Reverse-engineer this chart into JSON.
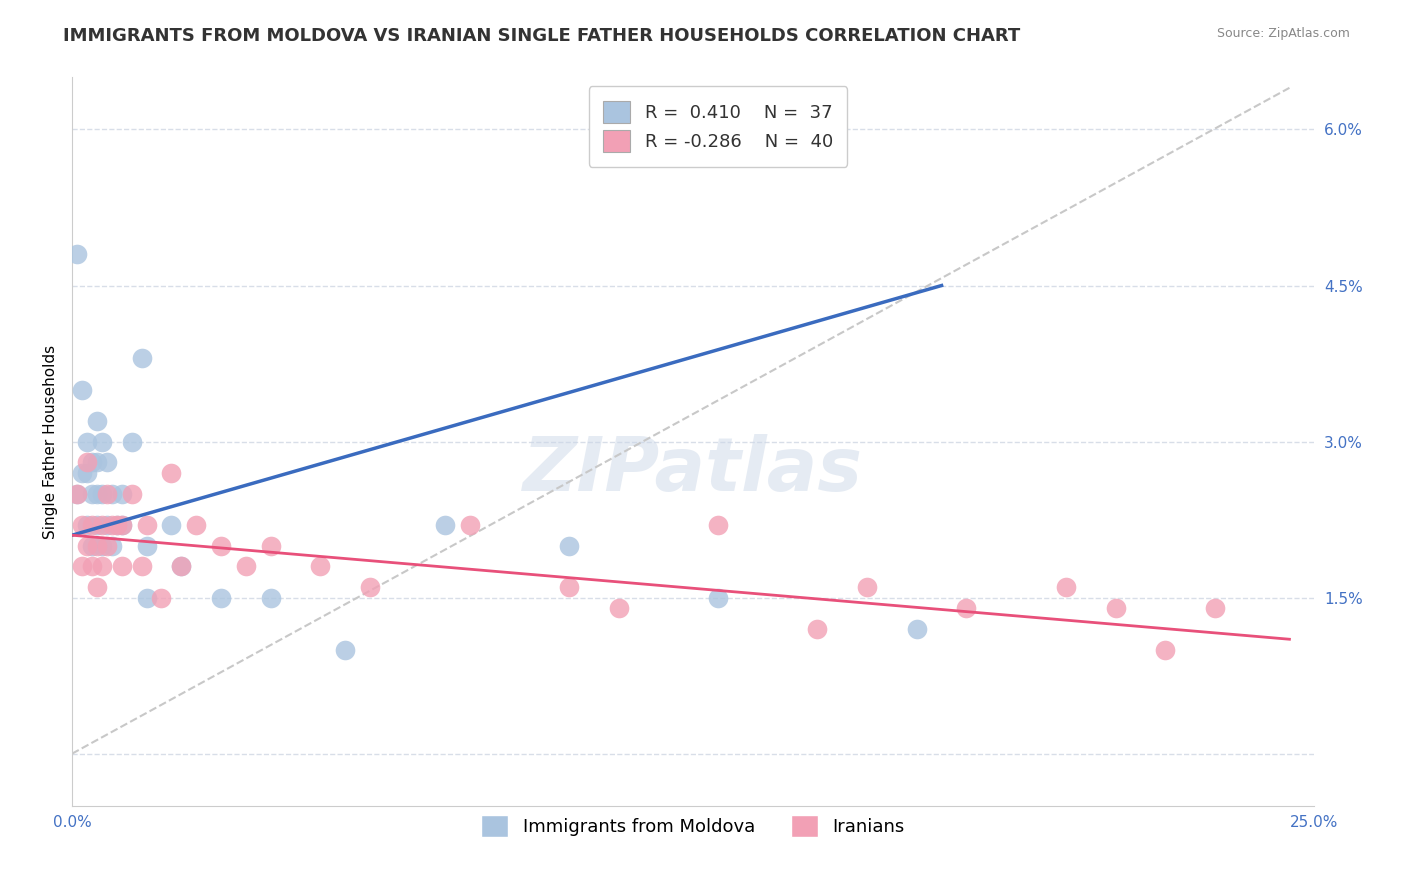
{
  "title": "IMMIGRANTS FROM MOLDOVA VS IRANIAN SINGLE FATHER HOUSEHOLDS CORRELATION CHART",
  "source": "Source: ZipAtlas.com",
  "ylabel": "Single Father Households",
  "xlim": [
    0.0,
    0.25
  ],
  "ylim": [
    -0.005,
    0.065
  ],
  "yticks_right": [
    0.0,
    0.015,
    0.03,
    0.045,
    0.06
  ],
  "yticklabels_right": [
    "",
    "1.5%",
    "3.0%",
    "4.5%",
    "6.0%"
  ],
  "moldova_color": "#aac4df",
  "iranian_color": "#f2a0b5",
  "moldova_line_color": "#3a6bbf",
  "iranian_line_color": "#e8507a",
  "dashed_line_color": "#c8c8c8",
  "legend_R1": "0.410",
  "legend_N1": "37",
  "legend_R2": "-0.286",
  "legend_N2": "40",
  "watermark": "ZIPatlas",
  "background_color": "#ffffff",
  "grid_color": "#d8dee8",
  "moldova_line_x0": 0.0,
  "moldova_line_y0": 0.021,
  "moldova_line_x1": 0.175,
  "moldova_line_y1": 0.045,
  "iranian_line_x0": 0.0,
  "iranian_line_y0": 0.021,
  "iranian_line_x1": 0.245,
  "iranian_line_y1": 0.011,
  "dashed_line_x0": 0.0,
  "dashed_line_y0": 0.0,
  "dashed_line_x1": 0.245,
  "dashed_line_y1": 0.064,
  "moldova_x": [
    0.001,
    0.001,
    0.002,
    0.002,
    0.003,
    0.003,
    0.003,
    0.004,
    0.004,
    0.004,
    0.005,
    0.005,
    0.005,
    0.005,
    0.006,
    0.006,
    0.006,
    0.007,
    0.007,
    0.008,
    0.008,
    0.009,
    0.01,
    0.01,
    0.012,
    0.014,
    0.015,
    0.015,
    0.02,
    0.022,
    0.03,
    0.04,
    0.055,
    0.075,
    0.1,
    0.13,
    0.17
  ],
  "moldova_y": [
    0.048,
    0.025,
    0.035,
    0.027,
    0.03,
    0.027,
    0.022,
    0.028,
    0.025,
    0.02,
    0.032,
    0.028,
    0.025,
    0.022,
    0.03,
    0.025,
    0.02,
    0.028,
    0.022,
    0.025,
    0.02,
    0.022,
    0.025,
    0.022,
    0.03,
    0.038,
    0.02,
    0.015,
    0.022,
    0.018,
    0.015,
    0.015,
    0.01,
    0.022,
    0.02,
    0.015,
    0.012
  ],
  "iranian_x": [
    0.001,
    0.002,
    0.002,
    0.003,
    0.003,
    0.004,
    0.004,
    0.005,
    0.005,
    0.006,
    0.006,
    0.007,
    0.007,
    0.008,
    0.009,
    0.01,
    0.01,
    0.012,
    0.014,
    0.015,
    0.018,
    0.02,
    0.022,
    0.025,
    0.03,
    0.035,
    0.04,
    0.05,
    0.06,
    0.08,
    0.1,
    0.11,
    0.13,
    0.15,
    0.16,
    0.18,
    0.2,
    0.21,
    0.22,
    0.23
  ],
  "iranian_y": [
    0.025,
    0.022,
    0.018,
    0.028,
    0.02,
    0.022,
    0.018,
    0.02,
    0.016,
    0.022,
    0.018,
    0.025,
    0.02,
    0.022,
    0.022,
    0.022,
    0.018,
    0.025,
    0.018,
    0.022,
    0.015,
    0.027,
    0.018,
    0.022,
    0.02,
    0.018,
    0.02,
    0.018,
    0.016,
    0.022,
    0.016,
    0.014,
    0.022,
    0.012,
    0.016,
    0.014,
    0.016,
    0.014,
    0.01,
    0.014
  ],
  "title_fontsize": 13,
  "axis_label_fontsize": 11,
  "tick_fontsize": 11,
  "legend_fontsize": 13
}
